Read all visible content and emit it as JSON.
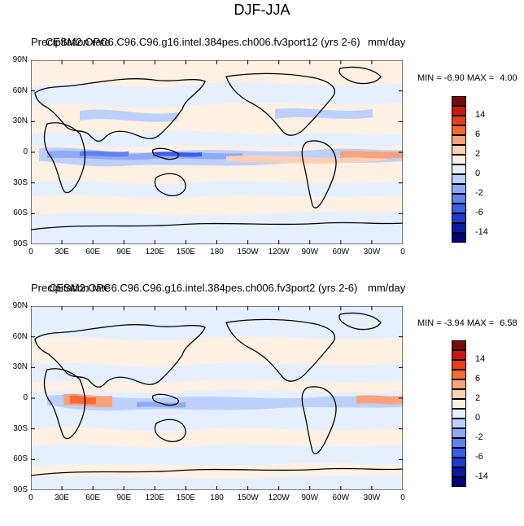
{
  "figure_title": "DJF-JJA",
  "colorbar": {
    "colors": [
      "#7a0a0a",
      "#c8180f",
      "#e8401a",
      "#f86a35",
      "#fba27a",
      "#fdd0b5",
      "#fff0e4",
      "#e6efff",
      "#bcd0fb",
      "#8fa9f4",
      "#6082ef",
      "#3a5ee9",
      "#1d3bcf",
      "#0b1aa0",
      "#03037a"
    ],
    "labels": [
      "14",
      "6",
      "2",
      "0",
      "-2",
      "-6",
      "-14"
    ]
  },
  "panels": [
    {
      "left_title": "Precipitation rate",
      "center_title": "CESM2.OPC6.C96.C96.g16.intel.384pes.ch006.fv3port12 (yrs 2-6)",
      "right_title": "mm/day",
      "min_label": "MIN =",
      "min_value": "-6.90",
      "max_label": "MAX =",
      "max_value": "4.00"
    },
    {
      "left_title": "Precipitation rate",
      "center_title": "CESM2.OPC6.C96.C96.g16.intel.384pes.ch006.fv3port2 (yrs 2-6)",
      "right_title": "mm/day",
      "min_label": "MIN =",
      "min_value": "-3.94",
      "max_label": "MAX =",
      "max_value": "6.58"
    }
  ],
  "lat_labels": [
    "90N",
    "60N",
    "30N",
    "0",
    "30S",
    "60S",
    "90S"
  ],
  "lon_labels": [
    "0",
    "30E",
    "60E",
    "90E",
    "120E",
    "150E",
    "180",
    "150W",
    "120W",
    "90W",
    "60W",
    "30W",
    "0"
  ]
}
